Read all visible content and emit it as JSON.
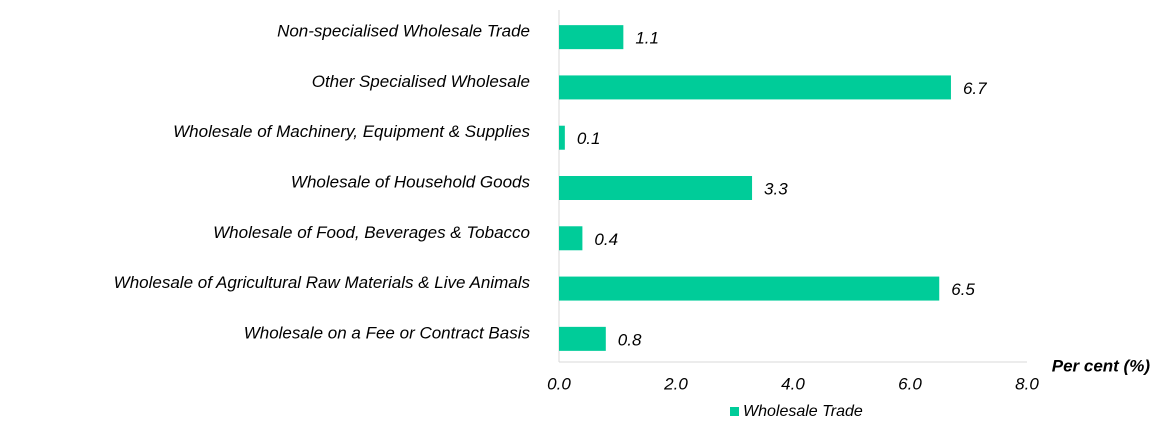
{
  "chart_data": {
    "type": "barh",
    "categories": [
      "Non-specialised Wholesale Trade",
      "Other Specialised Wholesale",
      "Wholesale of Machinery, Equipment & Supplies",
      "Wholesale of Household Goods",
      "Wholesale of Food, Beverages & Tobacco",
      "Wholesale of Agricultural Raw Materials & Live Animals",
      "Wholesale on a Fee or Contract Basis"
    ],
    "series": [
      {
        "name": "Wholesale Trade",
        "color": "#00cc99",
        "values": [
          1.1,
          6.7,
          0.1,
          3.3,
          0.4,
          6.5,
          0.8
        ]
      }
    ],
    "x_label": "Per cent (%)",
    "xlim": [
      0,
      8
    ],
    "xticks": [
      {
        "value": 0,
        "label": "0.0"
      },
      {
        "value": 2,
        "label": "2.0"
      },
      {
        "value": 4,
        "label": "4.0"
      },
      {
        "value": 6,
        "label": "6.0"
      },
      {
        "value": 8,
        "label": "8.0"
      }
    ],
    "legend": "bottom"
  }
}
